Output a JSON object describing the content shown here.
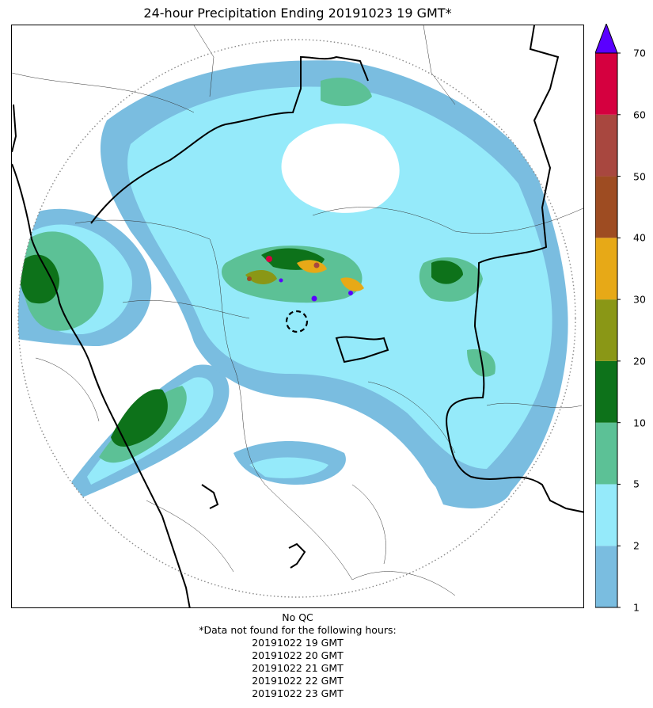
{
  "title": "24-hour Precipitation Ending 20191023 19 GMT*",
  "colorbar": {
    "ticks": [
      "1",
      "2",
      "5",
      "10",
      "20",
      "30",
      "40",
      "50",
      "60",
      "70"
    ],
    "colors": [
      "#7abde0",
      "#95eafa",
      "#5cc196",
      "#0d721a",
      "#8a9716",
      "#e7a917",
      "#9e4c22",
      "#a8473f",
      "#d5003f"
    ],
    "extend_color": "#5a00ff"
  },
  "footer": {
    "qc": "No QC",
    "missing_note": "*Data not found for the following hours:",
    "missing_hours": [
      "20191022 19 GMT",
      "20191022 20 GMT",
      "20191022 21 GMT",
      "20191022 22 GMT",
      "20191022 23 GMT"
    ]
  }
}
